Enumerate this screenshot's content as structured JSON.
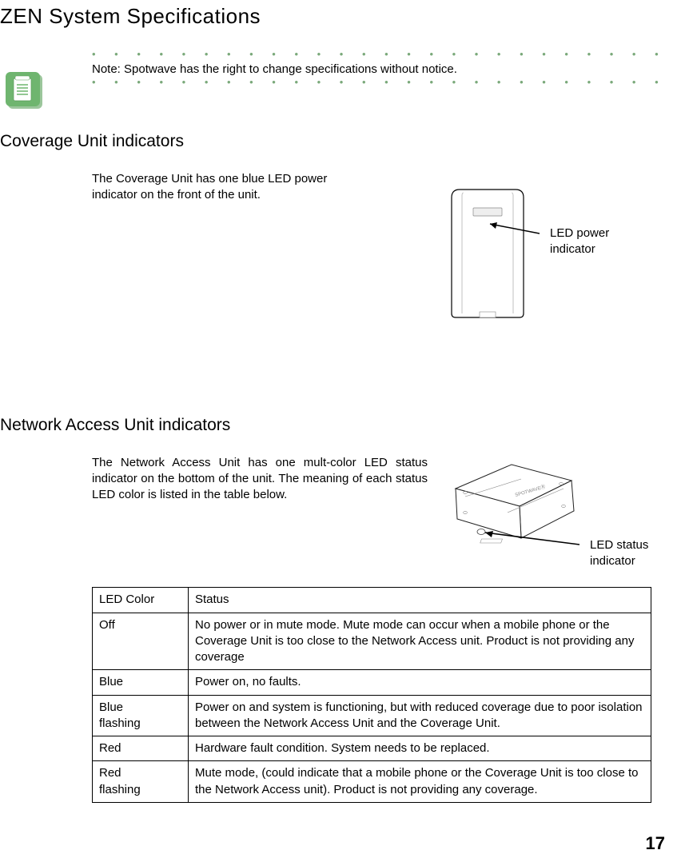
{
  "title": "ZEN System Specifications",
  "colors": {
    "dotted_line": "#7aa97a",
    "icon_bg": "#6fb56f",
    "icon_face": "#ffffff",
    "text": "#000000",
    "bg": "#ffffff"
  },
  "note": {
    "text": "Note: Spotwave has the right to change specifications without notice.",
    "dots": "•  •  •  •  •  •  •  •  •  •  •  •  •  •  •  •  •  •  •  •  •  •  •  •  •  •  •  •  •  •  •  •  •  •  •  •  •  •  •  •  •  •  •  •  •  •  •  •  •  •"
  },
  "coverage": {
    "title": "Coverage Unit indicators",
    "body": "The Coverage Unit has one blue LED power indicator on the front of the unit.",
    "callout_line1": "LED power",
    "callout_line2": "indicator"
  },
  "network": {
    "title": "Network Access Unit indicators",
    "body": "The Network Access Unit has one mult-color LED status indicator on the bottom of the unit. The meaning of each status LED color is listed in the table below.",
    "callout_line1": "LED status",
    "callout_line2": "indicator"
  },
  "table": {
    "header": {
      "col1": "LED Color",
      "col2": "Status"
    },
    "rows": [
      {
        "color": "Off",
        "status": "No power or in mute mode. Mute mode can occur when a mobile phone or the Coverage Unit is too close to the Network Access unit. Product is not providing any coverage"
      },
      {
        "color": "Blue",
        "status": "Power on, no faults."
      },
      {
        "color": "Blue\nflashing",
        "status": "Power on and system is functioning, but with reduced coverage due to poor isolation between the Network Access Unit and the Coverage Unit."
      },
      {
        "color": "Red",
        "status": "Hardware fault condition. System needs to be replaced."
      },
      {
        "color": "Red\nflashing",
        "status": "Mute mode, (could indicate that a mobile phone or the Coverage Unit is too close to the Network Access unit). Product is not providing any coverage."
      }
    ]
  },
  "page_number": "17"
}
